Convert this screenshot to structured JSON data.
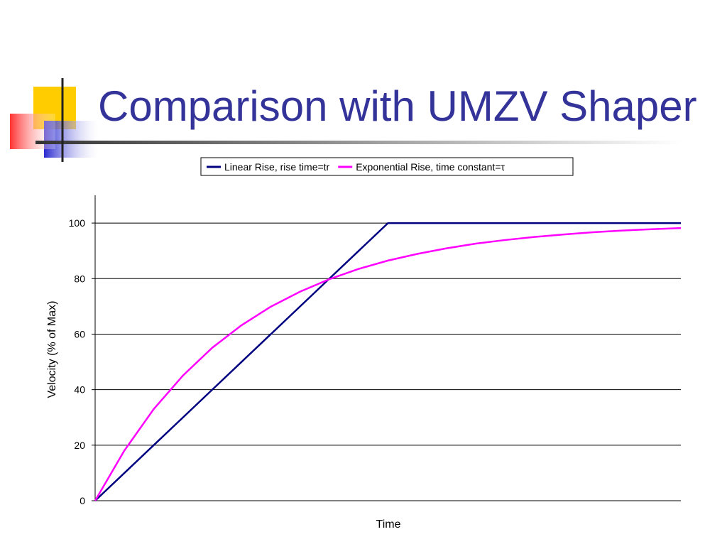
{
  "chart_data": {
    "type": "line",
    "title": "Comparison with UMZV Shaper",
    "x_label": "Time",
    "y_label": "Velocity (% of Max)",
    "x": [
      0,
      0.1,
      0.2,
      0.3,
      0.4,
      0.5,
      0.6,
      0.7,
      0.8,
      0.9,
      1.0,
      1.1,
      1.2,
      1.3,
      1.4,
      1.5,
      1.6,
      1.7,
      1.8,
      1.9,
      2.0
    ],
    "xlim": [
      0,
      2
    ],
    "ylim": [
      0,
      110
    ],
    "yticks": [
      0,
      20,
      40,
      60,
      80,
      100
    ],
    "grid": true,
    "legend": "top",
    "series": [
      {
        "name": "Linear Rise, rise time=tr",
        "color": "#000080",
        "values": [
          0,
          10,
          20,
          30,
          40,
          50,
          60,
          70,
          80,
          90,
          100,
          100,
          100,
          100,
          100,
          100,
          100,
          100,
          100,
          100,
          100
        ]
      },
      {
        "name": "Exponential Rise, time constant=τ",
        "color": "#ff00ff",
        "values": [
          0,
          18.1,
          33.0,
          45.1,
          55.1,
          63.2,
          69.9,
          75.3,
          79.8,
          83.5,
          86.5,
          88.9,
          90.9,
          92.6,
          93.9,
          95.0,
          95.9,
          96.7,
          97.3,
          97.8,
          98.2
        ]
      }
    ]
  }
}
